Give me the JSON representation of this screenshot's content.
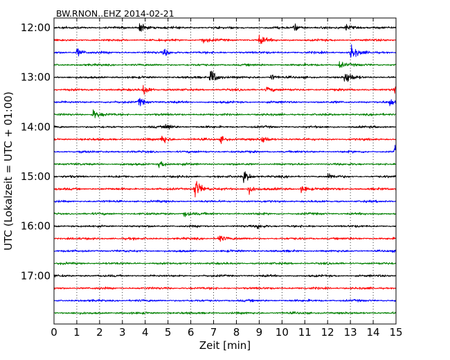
{
  "chart_data": {
    "type": "line",
    "title": "BW.RNON..EHZ 2014-02-21",
    "xlabel": "Zeit  [min]",
    "ylabel": "UTC (Lokalzeit = UTC + 01:00)",
    "xlim": [
      0,
      15
    ],
    "x_ticks": [
      0,
      1,
      2,
      3,
      4,
      5,
      6,
      7,
      8,
      9,
      10,
      11,
      12,
      13,
      14,
      15
    ],
    "x_tick_labels": [
      "0",
      "1",
      "2",
      "3",
      "4",
      "5",
      "6",
      "7",
      "8",
      "9",
      "10",
      "11",
      "12",
      "13",
      "14",
      "15"
    ],
    "y_tick_labels": [
      "12:00",
      "13:00",
      "14:00",
      "15:00",
      "16:00",
      "17:00"
    ],
    "y_tick_rows": [
      0,
      4,
      8,
      12,
      16,
      20
    ],
    "grid": "vertical dotted",
    "trace_colors": [
      "#000000",
      "#ff0000",
      "#0000ff",
      "#008000"
    ],
    "series": [
      {
        "start": "12:00",
        "color": "#000000",
        "events": [
          {
            "t": 3.75,
            "amp": 0.6
          },
          {
            "t": 10.5,
            "amp": 0.4
          },
          {
            "t": 12.8,
            "amp": 0.4
          }
        ]
      },
      {
        "start": "12:15",
        "color": "#ff0000",
        "events": [
          {
            "t": 6.5,
            "amp": 0.35
          },
          {
            "t": 9.0,
            "amp": 0.45
          }
        ]
      },
      {
        "start": "12:30",
        "color": "#0000ff",
        "events": [
          {
            "t": 1.0,
            "amp": 0.45
          },
          {
            "t": 4.8,
            "amp": 0.4
          },
          {
            "t": 13.0,
            "amp": 0.9
          }
        ]
      },
      {
        "start": "12:45",
        "color": "#008000",
        "events": [
          {
            "t": 12.5,
            "amp": 0.35
          }
        ]
      },
      {
        "start": "13:00",
        "color": "#000000",
        "events": [
          {
            "t": 6.85,
            "amp": 1.0
          },
          {
            "t": 12.75,
            "amp": 0.9
          },
          {
            "t": 9.5,
            "amp": 0.35
          }
        ]
      },
      {
        "start": "13:15",
        "color": "#ff0000",
        "events": [
          {
            "t": 3.9,
            "amp": 0.6
          },
          {
            "t": 14.9,
            "amp": 0.55
          },
          {
            "t": 9.3,
            "amp": 0.35
          }
        ]
      },
      {
        "start": "13:30",
        "color": "#0000ff",
        "events": [
          {
            "t": 3.7,
            "amp": 0.5
          },
          {
            "t": 14.7,
            "amp": 0.4
          }
        ]
      },
      {
        "start": "13:45",
        "color": "#008000",
        "events": [
          {
            "t": 1.7,
            "amp": 0.55
          }
        ]
      },
      {
        "start": "14:00",
        "color": "#000000",
        "events": [
          {
            "t": 4.9,
            "amp": 0.4
          }
        ]
      },
      {
        "start": "14:15",
        "color": "#ff0000",
        "events": [
          {
            "t": 4.7,
            "amp": 0.6
          },
          {
            "t": 9.1,
            "amp": 0.45
          },
          {
            "t": 7.3,
            "amp": 0.35
          }
        ]
      },
      {
        "start": "14:30",
        "color": "#0000ff",
        "events": [
          {
            "t": 14.95,
            "amp": 0.6
          }
        ]
      },
      {
        "start": "14:45",
        "color": "#008000",
        "events": [
          {
            "t": 4.6,
            "amp": 0.45
          }
        ]
      },
      {
        "start": "15:00",
        "color": "#000000",
        "events": [
          {
            "t": 8.3,
            "amp": 0.7
          },
          {
            "t": 12.0,
            "amp": 0.3
          }
        ]
      },
      {
        "start": "15:15",
        "color": "#ff0000",
        "events": [
          {
            "t": 6.15,
            "amp": 1.3
          },
          {
            "t": 8.5,
            "amp": 0.5
          },
          {
            "t": 10.85,
            "amp": 0.45
          }
        ]
      },
      {
        "start": "15:30",
        "color": "#0000ff",
        "events": []
      },
      {
        "start": "15:45",
        "color": "#008000",
        "events": [
          {
            "t": 5.7,
            "amp": 0.35
          }
        ]
      },
      {
        "start": "16:00",
        "color": "#000000",
        "events": [
          {
            "t": 8.9,
            "amp": 0.3
          }
        ]
      },
      {
        "start": "16:15",
        "color": "#ff0000",
        "events": [
          {
            "t": 7.2,
            "amp": 0.45
          }
        ]
      },
      {
        "start": "16:30",
        "color": "#0000ff",
        "events": []
      },
      {
        "start": "16:45",
        "color": "#008000",
        "events": []
      },
      {
        "start": "17:00",
        "color": "#000000",
        "events": []
      },
      {
        "start": "17:15",
        "color": "#ff0000",
        "events": []
      },
      {
        "start": "17:30",
        "color": "#0000ff",
        "events": []
      },
      {
        "start": "17:45",
        "color": "#008000",
        "events": []
      }
    ]
  }
}
